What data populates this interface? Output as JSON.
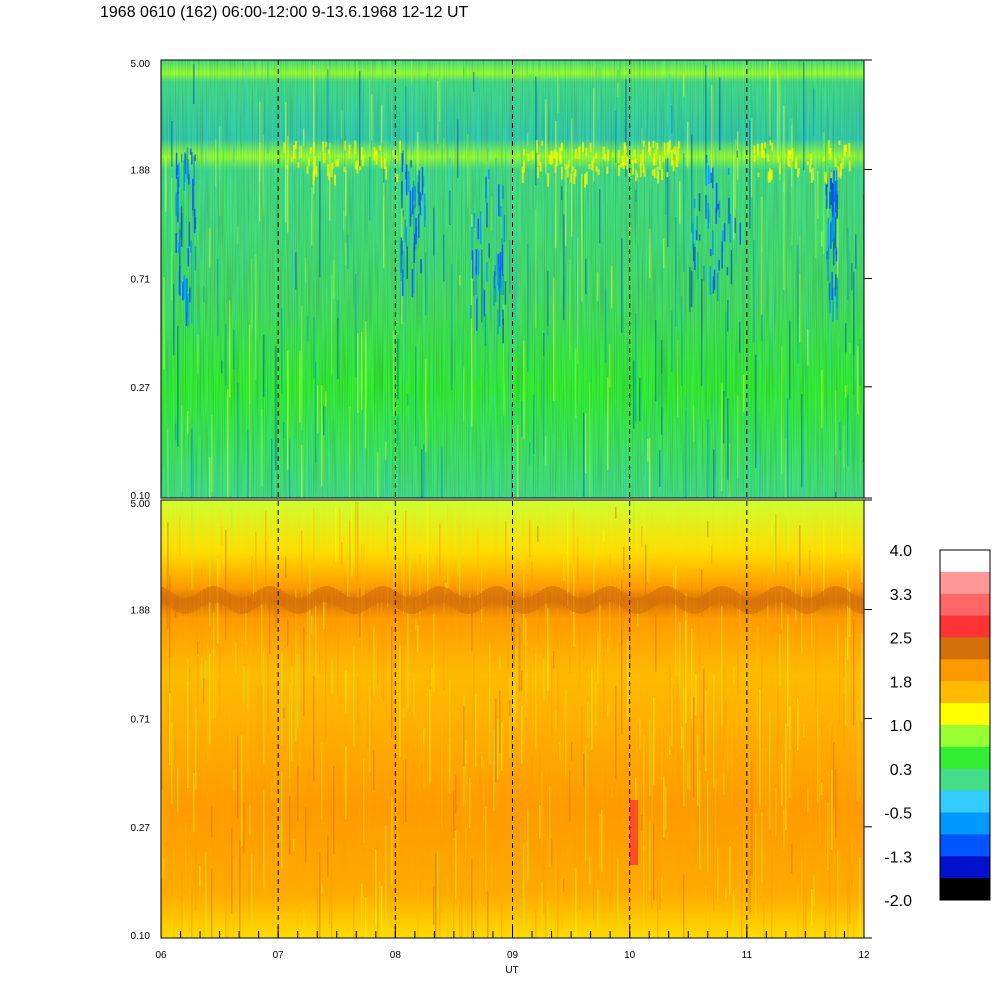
{
  "title": "1968 0610 (162) 06:00-12:00 9-13.6.1968  12-12 UT",
  "chart_data": {
    "type": "heatmap",
    "panels": [
      {
        "name": "",
        "y_ticks": [
          "5.00",
          "1.88",
          "0.71",
          "0.27",
          "0.10"
        ],
        "ylim": [
          0.1,
          5.0
        ],
        "y_scale": "log",
        "dominant_levels": "green/cyan with blue patches near 1.88; yellow band near 1.88"
      },
      {
        "name": "",
        "y_ticks": [
          "5.00",
          "1.88",
          "0.71",
          "0.27",
          "0.10"
        ],
        "ylim": [
          0.1,
          5.0
        ],
        "y_scale": "log",
        "dominant_levels": "orange/yellow; dark orange band near 1.88"
      }
    ],
    "x_ticks": [
      "06",
      "07",
      "08",
      "09",
      "10",
      "11",
      "12"
    ],
    "xlim": [
      6,
      12
    ],
    "xlabel": "UT",
    "hour_markers": [
      7,
      8,
      9,
      10,
      11
    ],
    "colorbar": {
      "labels": [
        "4.0",
        "3.3",
        "2.5",
        "1.8",
        "1.0",
        "0.3",
        "-0.5",
        "-1.3",
        "-2.0"
      ],
      "range": [
        -2.0,
        4.0
      ],
      "colors": [
        "#ffffff",
        "#ff9999",
        "#ff6666",
        "#ff3333",
        "#d4700a",
        "#ff9900",
        "#ffbb00",
        "#ffff00",
        "#99ff33",
        "#33ee33",
        "#44dd88",
        "#33ccff",
        "#0099ff",
        "#0055ff",
        "#0011cc",
        "#000000"
      ]
    }
  }
}
